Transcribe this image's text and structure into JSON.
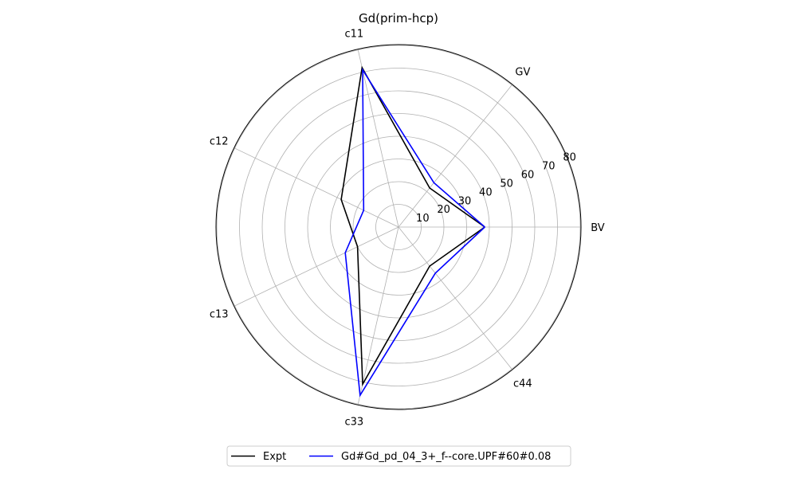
{
  "chart_data": {
    "type": "radar",
    "title": "Gd(prim-hcp)",
    "axes": [
      "BV",
      "GV",
      "c11",
      "c12",
      "c13",
      "c33",
      "c44"
    ],
    "r_ticks": [
      10,
      20,
      30,
      40,
      50,
      60,
      70,
      80
    ],
    "r_tick_labels": [
      "10",
      "20",
      "30",
      "40",
      "50",
      "60",
      "70",
      "80"
    ],
    "rlim": [
      0,
      80
    ],
    "grid": true,
    "legend_position": "bottom-center",
    "series": [
      {
        "name": "Expt",
        "color": "#000000",
        "values": [
          38.0,
          22.0,
          72.0,
          28.0,
          20.0,
          71.0,
          22.0
        ]
      },
      {
        "name": "Gd#Gd_pd_04_3+_f--core.UPF#60#0.08",
        "color": "#0000ff",
        "values": [
          38.0,
          25.0,
          71.0,
          17.0,
          26.0,
          76.0,
          26.0
        ]
      }
    ]
  }
}
